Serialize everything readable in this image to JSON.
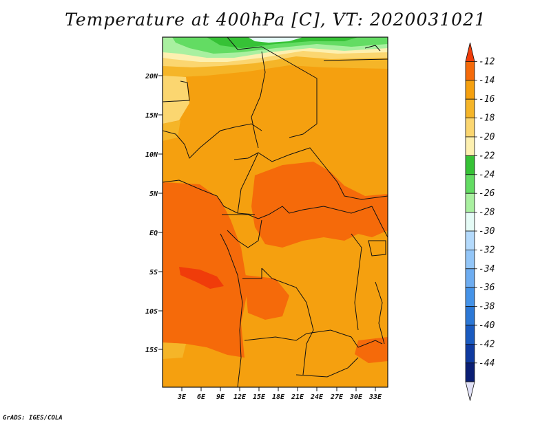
{
  "title": "Temperature at 400hPa [C], VT: 2020031021",
  "credit": "GrADS: IGES/COLA",
  "map": {
    "lat_labels": [
      "20N",
      "15N",
      "10N",
      "5N",
      "EQ",
      "5S",
      "10S",
      "15S"
    ],
    "lon_labels": [
      "3E",
      "6E",
      "9E",
      "12E",
      "15E",
      "18E",
      "21E",
      "24E",
      "27E",
      "30E",
      "33E"
    ]
  },
  "colorbar": {
    "levels": [
      "-12",
      "-14",
      "-16",
      "-18",
      "-20",
      "-22",
      "-24",
      "-26",
      "-28",
      "-30",
      "-32",
      "-34",
      "-36",
      "-38",
      "-40",
      "-42",
      "-44"
    ],
    "colors": [
      "#f03c0a",
      "#f56a0a",
      "#f5a00f",
      "#f5b528",
      "#fbd670",
      "#fdf0b0",
      "#36c236",
      "#63dc63",
      "#a9f0a0",
      "#e5fbf6",
      "#b4dafc",
      "#93c6f8",
      "#6eadf1",
      "#4593e8",
      "#2c78d6",
      "#1a5bc0",
      "#0f3aa0",
      "#0a1e74",
      "#e2e2f7"
    ]
  }
}
